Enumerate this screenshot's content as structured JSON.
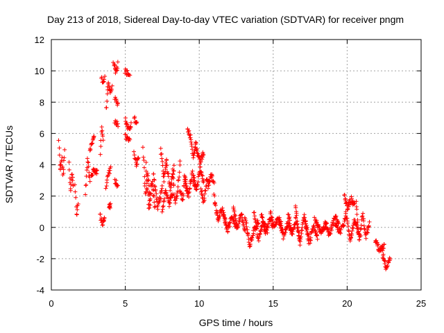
{
  "chart_data": {
    "type": "scatter",
    "title": "Day 213 of 2018, Sidereal Day-to-day VTEC variation (SDTVAR) for receiver pngm",
    "xlabel": "GPS time / hours",
    "ylabel": "SDTVAR / TECUs",
    "xlim": [
      0,
      25
    ],
    "ylim": [
      -4,
      12
    ],
    "xticks": [
      "0",
      "5",
      "10",
      "15",
      "20",
      "25"
    ],
    "yticks": [
      "-4",
      "-2",
      "0",
      "2",
      "4",
      "6",
      "8",
      "10",
      "12"
    ],
    "grid": true,
    "marker": "plus",
    "color": "#ff0000",
    "series": [
      {
        "name": "SDTVAR",
        "segments": [
          {
            "x0": 0.5,
            "x1": 0.9,
            "y": [
              5.5,
              3.5,
              4.5,
              3.2,
              5.0
            ]
          },
          {
            "x0": 1.2,
            "x1": 1.5,
            "y": [
              4.0,
              2.2,
              3.5,
              2.6
            ]
          },
          {
            "x0": 1.6,
            "x1": 1.8,
            "y": [
              2.8,
              0.8,
              1.5
            ]
          },
          {
            "x0": 2.3,
            "x1": 2.6,
            "y": [
              2.2,
              4.4,
              3.0
            ]
          },
          {
            "x0": 2.6,
            "x1": 2.9,
            "y": [
              5.0,
              5.4,
              5.8
            ]
          },
          {
            "x0": 2.7,
            "x1": 3.1,
            "y": [
              3.3,
              3.7,
              3.5
            ]
          },
          {
            "x0": 3.3,
            "x1": 3.5,
            "y": [
              4.8,
              6.5,
              5.5
            ]
          },
          {
            "x0": 3.4,
            "x1": 3.6,
            "y": [
              9.6,
              9.2,
              9.5
            ]
          },
          {
            "x0": 3.3,
            "x1": 3.6,
            "y": [
              0.8,
              0.2,
              0.6
            ]
          },
          {
            "x0": 3.7,
            "x1": 4.1,
            "y": [
              7.5,
              9.3,
              8.6,
              9.0
            ]
          },
          {
            "x0": 3.7,
            "x1": 4.0,
            "y": [
              2.6,
              3.4,
              3.8
            ]
          },
          {
            "x0": 3.9,
            "x1": 4.0,
            "y": [
              1.3,
              1.4
            ]
          },
          {
            "x0": 4.2,
            "x1": 4.5,
            "y": [
              10.6,
              9.8,
              10.4
            ]
          },
          {
            "x0": 4.3,
            "x1": 4.5,
            "y": [
              8.2,
              7.9
            ]
          },
          {
            "x0": 4.3,
            "x1": 4.5,
            "y": [
              6.8,
              6.6
            ]
          },
          {
            "x0": 4.3,
            "x1": 4.5,
            "y": [
              3.0,
              2.7
            ]
          },
          {
            "x0": 5.0,
            "x1": 5.3,
            "y": [
              10.0,
              9.7
            ]
          },
          {
            "x0": 5.0,
            "x1": 5.4,
            "y": [
              6.9,
              6.2,
              6.6
            ]
          },
          {
            "x0": 5.0,
            "x1": 5.3,
            "y": [
              5.8,
              5.5
            ]
          },
          {
            "x0": 5.6,
            "x1": 5.8,
            "y": [
              7.0,
              6.6
            ]
          },
          {
            "x0": 5.6,
            "x1": 5.9,
            "y": [
              4.8,
              4.0,
              4.5
            ]
          },
          {
            "x0": 6.2,
            "x1": 6.7,
            "y": [
              5.0,
              2.0,
              3.5,
              1.5
            ]
          },
          {
            "x0": 6.4,
            "x1": 7.0,
            "y": [
              4.0,
              1.0,
              3.0,
              1.2
            ]
          },
          {
            "x0": 6.9,
            "x1": 7.5,
            "y": [
              3.5,
              1.2,
              2.5
            ]
          },
          {
            "x0": 7.4,
            "x1": 7.8,
            "y": [
              5.0,
              3.0,
              4.5
            ]
          },
          {
            "x0": 7.5,
            "x1": 8.2,
            "y": [
              1.0,
              2.5,
              1.5,
              2.2
            ]
          },
          {
            "x0": 7.8,
            "x1": 8.3,
            "y": [
              4.0,
              2.5,
              3.8
            ]
          },
          {
            "x0": 8.2,
            "x1": 8.7,
            "y": [
              3.8,
              1.5,
              2.2,
              4.2
            ]
          },
          {
            "x0": 8.7,
            "x1": 9.2,
            "y": [
              2.5,
              1.8,
              3.2,
              2.0
            ]
          },
          {
            "x0": 9.2,
            "x1": 9.8,
            "y": [
              6.2,
              5.8,
              4.5,
              5.5
            ]
          },
          {
            "x0": 9.0,
            "x1": 9.8,
            "y": [
              3.2,
              2.0,
              3.5,
              2.5
            ]
          },
          {
            "x0": 9.6,
            "x1": 10.3,
            "y": [
              3.0,
              2.5,
              3.8,
              2.8
            ]
          },
          {
            "x0": 9.8,
            "x1": 10.3,
            "y": [
              5.0,
              4.2,
              4.8
            ]
          },
          {
            "x0": 10.1,
            "x1": 10.7,
            "y": [
              2.5,
              1.6,
              3.0,
              2.8
            ]
          },
          {
            "x0": 10.6,
            "x1": 11.0,
            "y": [
              2.6,
              3.3,
              3.0
            ]
          },
          {
            "x0": 11.0,
            "x1": 11.8,
            "y": [
              2.0,
              0.5,
              1.2,
              0.2
            ]
          },
          {
            "x0": 11.6,
            "x1": 12.5,
            "y": [
              1.0,
              -0.2,
              0.6,
              0.0
            ]
          },
          {
            "x0": 12.3,
            "x1": 13.1,
            "y": [
              1.2,
              0.0,
              0.8,
              -0.3
            ]
          },
          {
            "x0": 13.1,
            "x1": 14.0,
            "y": [
              0.8,
              -1.2,
              -0.2,
              0.4
            ]
          },
          {
            "x0": 13.7,
            "x1": 14.6,
            "y": [
              1.0,
              -0.8,
              0.3,
              -0.2
            ]
          },
          {
            "x0": 14.2,
            "x1": 15.0,
            "y": [
              0.9,
              -0.3,
              0.5,
              0.0
            ]
          },
          {
            "x0": 14.8,
            "x1": 15.6,
            "y": [
              1.0,
              0.0,
              0.6,
              -0.2
            ]
          },
          {
            "x0": 15.4,
            "x1": 16.3,
            "y": [
              0.7,
              -0.6,
              0.3,
              -0.4
            ]
          },
          {
            "x0": 16.0,
            "x1": 16.8,
            "y": [
              1.0,
              -0.5,
              0.5,
              -0.8
            ]
          },
          {
            "x0": 16.5,
            "x1": 17.4,
            "y": [
              1.5,
              -1.0,
              0.8,
              -0.9
            ]
          },
          {
            "x0": 17.2,
            "x1": 18.0,
            "y": [
              0.3,
              -0.9,
              0.1,
              -0.6
            ]
          },
          {
            "x0": 17.8,
            "x1": 18.6,
            "y": [
              0.6,
              -0.3,
              0.2
            ]
          },
          {
            "x0": 18.5,
            "x1": 19.4,
            "y": [
              0.4,
              -0.5,
              0.5,
              -0.2
            ]
          },
          {
            "x0": 19.2,
            "x1": 19.9,
            "y": [
              0.8,
              -0.3,
              0.6
            ]
          },
          {
            "x0": 19.8,
            "x1": 20.5,
            "y": [
              2.0,
              1.2,
              1.8,
              1.4
            ]
          },
          {
            "x0": 19.9,
            "x1": 20.8,
            "y": [
              1.0,
              -0.8,
              0.5,
              -0.5
            ]
          },
          {
            "x0": 20.6,
            "x1": 21.5,
            "y": [
              1.5,
              -1.0,
              0.8,
              -0.6,
              0.2
            ]
          },
          {
            "x0": 21.9,
            "x1": 22.5,
            "y": [
              -0.8,
              -1.5,
              -1.2
            ]
          },
          {
            "x0": 22.4,
            "x1": 22.9,
            "y": [
              -1.8,
              -2.6,
              -2.0
            ]
          }
        ]
      }
    ]
  }
}
